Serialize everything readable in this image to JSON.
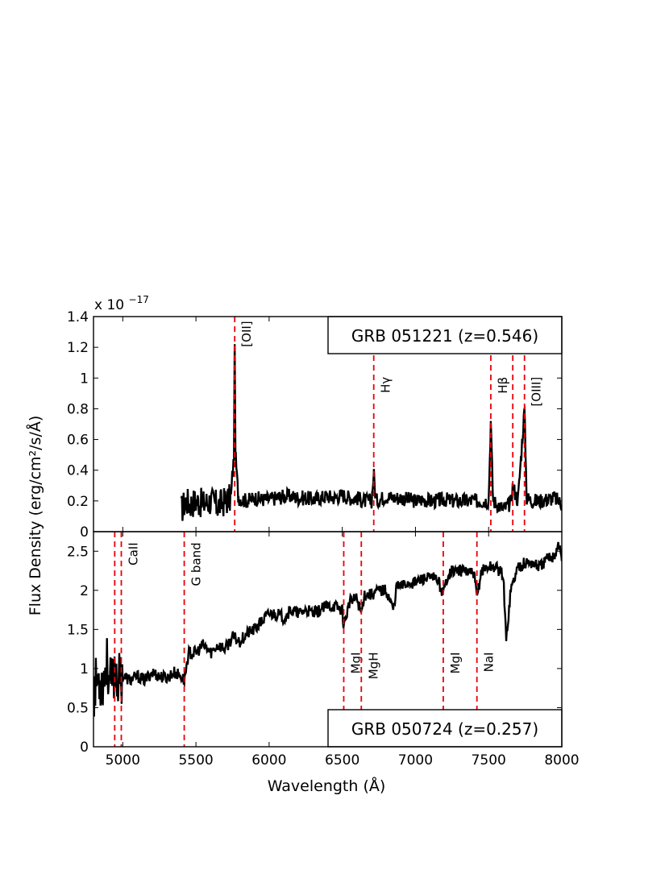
{
  "chart_data": [
    {
      "type": "line",
      "panel": "top",
      "legend": "GRB 051221 (z=0.546)",
      "legend_placement": "top-right",
      "xlim": [
        4800,
        8000
      ],
      "ylim": [
        0,
        1.4
      ],
      "y_exponent_label": "x 10",
      "y_exponent_power": "−17",
      "yticks": [
        "0",
        "0.2",
        "0.4",
        "0.6",
        "0.8",
        "1",
        "1.2",
        "1.4"
      ],
      "yticks_values": [
        0,
        0.2,
        0.4,
        0.6,
        0.8,
        1.0,
        1.2,
        1.4
      ],
      "grid": false,
      "line_color": "#000000",
      "marker_color": "#e8000b",
      "lines": [
        {
          "x": 5765,
          "label": "[OII]"
        },
        {
          "x": 6715,
          "label": "Hγ"
        },
        {
          "x": 7515,
          "label": "Hβ"
        },
        {
          "x": 7665,
          "label": ""
        },
        {
          "x": 7745,
          "label": "[OIII]"
        }
      ],
      "series": [
        {
          "x": [
            5400,
            5430,
            5460,
            5500,
            5550,
            5600,
            5650,
            5700,
            5740,
            5760,
            5765,
            5770,
            5790,
            5850,
            5900,
            5950,
            6000,
            6050,
            6100,
            6150,
            6200,
            6250,
            6300,
            6350,
            6400,
            6450,
            6500,
            6550,
            6600,
            6650,
            6700,
            6715,
            6730,
            6800,
            6850,
            6900,
            6950,
            7000,
            7050,
            7100,
            7150,
            7200,
            7250,
            7300,
            7350,
            7400,
            7450,
            7500,
            7515,
            7530,
            7600,
            7650,
            7665,
            7700,
            7745,
            7760,
            7800,
            7850,
            7900,
            7950,
            8000
          ],
          "y": [
            0.14,
            0.2,
            0.18,
            0.2,
            0.18,
            0.2,
            0.17,
            0.2,
            0.22,
            0.5,
            1.22,
            0.5,
            0.22,
            0.2,
            0.22,
            0.21,
            0.21,
            0.22,
            0.23,
            0.23,
            0.22,
            0.22,
            0.21,
            0.22,
            0.23,
            0.22,
            0.24,
            0.22,
            0.22,
            0.2,
            0.2,
            0.38,
            0.2,
            0.23,
            0.22,
            0.22,
            0.21,
            0.2,
            0.21,
            0.2,
            0.2,
            0.21,
            0.2,
            0.2,
            0.2,
            0.2,
            0.2,
            0.2,
            0.72,
            0.2,
            0.15,
            0.18,
            0.3,
            0.2,
            0.8,
            0.22,
            0.2,
            0.2,
            0.21,
            0.22,
            0.18
          ]
        }
      ]
    },
    {
      "type": "line",
      "panel": "bottom",
      "legend": "GRB 050724 (z=0.257)",
      "legend_placement": "bottom-right",
      "xlim": [
        4800,
        8000
      ],
      "ylim": [
        0,
        2.75
      ],
      "xlabel": "Wavelength   (Å)",
      "xticks": [
        "5000",
        "5500",
        "6000",
        "6500",
        "7000",
        "7500",
        "8000"
      ],
      "xticks_values": [
        5000,
        5500,
        6000,
        6500,
        7000,
        7500,
        8000
      ],
      "yticks": [
        "0",
        "0.5",
        "1",
        "1.5",
        "2",
        "2.5"
      ],
      "yticks_values": [
        0,
        0.5,
        1.0,
        1.5,
        2.0,
        2.5
      ],
      "grid": false,
      "line_color": "#000000",
      "marker_color": "#e8000b",
      "lines": [
        {
          "x": 4945,
          "label": ""
        },
        {
          "x": 4990,
          "label": "CaII"
        },
        {
          "x": 5420,
          "label": "G band"
        },
        {
          "x": 6510,
          "label": "MgI"
        },
        {
          "x": 6630,
          "label": "MgH"
        },
        {
          "x": 7190,
          "label": "MgI"
        },
        {
          "x": 7420,
          "label": "NaI"
        }
      ],
      "series": [
        {
          "x": [
            4800,
            4830,
            4860,
            4890,
            4920,
            4945,
            4970,
            5000,
            5050,
            5100,
            5150,
            5200,
            5250,
            5300,
            5350,
            5400,
            5420,
            5450,
            5500,
            5550,
            5600,
            5650,
            5700,
            5750,
            5800,
            5850,
            5900,
            5950,
            6000,
            6050,
            6100,
            6150,
            6200,
            6250,
            6300,
            6350,
            6400,
            6450,
            6500,
            6510,
            6550,
            6600,
            6630,
            6650,
            6700,
            6750,
            6800,
            6850,
            6870,
            6900,
            6950,
            7000,
            7050,
            7100,
            7150,
            7190,
            7220,
            7250,
            7300,
            7350,
            7400,
            7420,
            7450,
            7500,
            7550,
            7600,
            7620,
            7650,
            7700,
            7750,
            7800,
            7850,
            7900,
            7950,
            7980,
            8000
          ],
          "y": [
            0.7,
            0.9,
            0.8,
            1.1,
            0.75,
            1.0,
            0.85,
            0.9,
            0.85,
            0.9,
            0.85,
            0.95,
            0.9,
            0.88,
            0.95,
            0.9,
            0.85,
            1.2,
            1.2,
            1.3,
            1.2,
            1.3,
            1.25,
            1.4,
            1.35,
            1.45,
            1.5,
            1.6,
            1.7,
            1.7,
            1.65,
            1.75,
            1.7,
            1.75,
            1.7,
            1.75,
            1.8,
            1.8,
            1.75,
            1.55,
            1.85,
            1.9,
            1.7,
            1.95,
            1.95,
            2.0,
            2.0,
            1.75,
            2.05,
            2.05,
            2.1,
            2.1,
            2.15,
            2.15,
            2.15,
            1.95,
            2.2,
            2.25,
            2.25,
            2.25,
            2.2,
            1.9,
            2.25,
            2.3,
            2.3,
            2.2,
            1.35,
            2.0,
            2.3,
            2.35,
            2.35,
            2.3,
            2.4,
            2.45,
            2.6,
            2.4
          ]
        }
      ]
    }
  ],
  "shared": {
    "ylabel": "Flux Density   (erg/cm²/s/Å)"
  }
}
